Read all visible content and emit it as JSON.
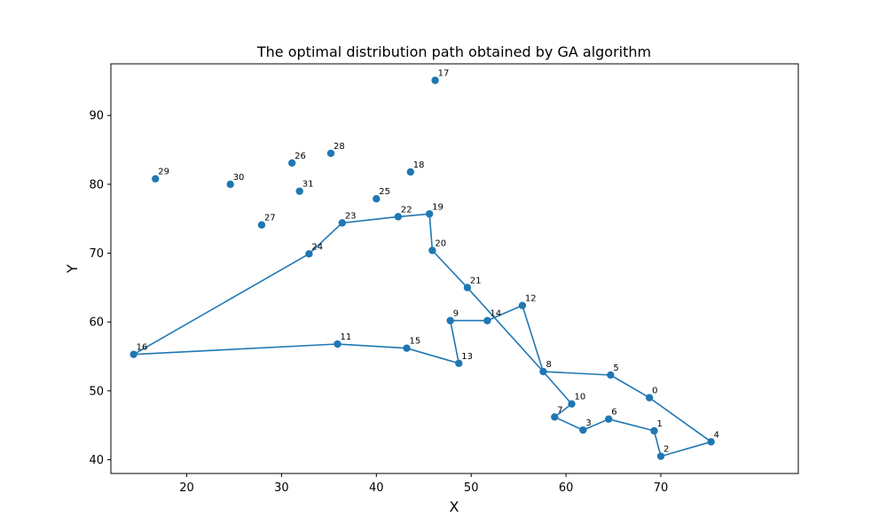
{
  "chart_data": {
    "type": "line",
    "title": "The optimal distribution path obtained by GA algorithm",
    "xlabel": "X",
    "ylabel": "Y",
    "xlim": [
      12,
      84.5
    ],
    "ylim": [
      38,
      97.5
    ],
    "xticks": [
      20,
      30,
      40,
      50,
      60,
      70
    ],
    "yticks": [
      40,
      50,
      60,
      70,
      80,
      90
    ],
    "grid": false,
    "line_color": "#1f77b4",
    "marker": "circle",
    "points": [
      {
        "label": "0",
        "x": 68.8,
        "y": 49.0
      },
      {
        "label": "1",
        "x": 69.3,
        "y": 44.2
      },
      {
        "label": "2",
        "x": 70.0,
        "y": 40.5
      },
      {
        "label": "3",
        "x": 61.8,
        "y": 44.3
      },
      {
        "label": "4",
        "x": 75.3,
        "y": 42.6
      },
      {
        "label": "5",
        "x": 64.7,
        "y": 52.3
      },
      {
        "label": "6",
        "x": 64.5,
        "y": 45.9
      },
      {
        "label": "7",
        "x": 58.8,
        "y": 46.2
      },
      {
        "label": "8",
        "x": 57.6,
        "y": 52.8
      },
      {
        "label": "9",
        "x": 47.8,
        "y": 60.2
      },
      {
        "label": "10",
        "x": 60.6,
        "y": 48.1
      },
      {
        "label": "11",
        "x": 35.9,
        "y": 56.8
      },
      {
        "label": "12",
        "x": 55.4,
        "y": 62.4
      },
      {
        "label": "13",
        "x": 48.7,
        "y": 54.0
      },
      {
        "label": "14",
        "x": 51.7,
        "y": 60.2
      },
      {
        "label": "15",
        "x": 43.2,
        "y": 56.2
      },
      {
        "label": "16",
        "x": 14.4,
        "y": 55.3
      },
      {
        "label": "17",
        "x": 46.2,
        "y": 95.1
      },
      {
        "label": "18",
        "x": 43.6,
        "y": 81.8
      },
      {
        "label": "19",
        "x": 45.6,
        "y": 75.7
      },
      {
        "label": "20",
        "x": 45.9,
        "y": 70.4
      },
      {
        "label": "21",
        "x": 49.6,
        "y": 65.0
      },
      {
        "label": "22",
        "x": 42.3,
        "y": 75.3
      },
      {
        "label": "23",
        "x": 36.4,
        "y": 74.4
      },
      {
        "label": "24",
        "x": 32.9,
        "y": 69.9
      },
      {
        "label": "25",
        "x": 40.0,
        "y": 77.9
      },
      {
        "label": "26",
        "x": 31.1,
        "y": 83.1
      },
      {
        "label": "27",
        "x": 27.9,
        "y": 74.1
      },
      {
        "label": "28",
        "x": 35.2,
        "y": 84.5
      },
      {
        "label": "29",
        "x": 16.7,
        "y": 80.8
      },
      {
        "label": "30",
        "x": 24.6,
        "y": 80.0
      },
      {
        "label": "31",
        "x": 31.9,
        "y": 79.0
      }
    ],
    "route": [
      0,
      4,
      2,
      1,
      6,
      3,
      7,
      10,
      8,
      12,
      14,
      9,
      13,
      15,
      11,
      16,
      24,
      23,
      22,
      19,
      20,
      21,
      8,
      5,
      0
    ]
  }
}
